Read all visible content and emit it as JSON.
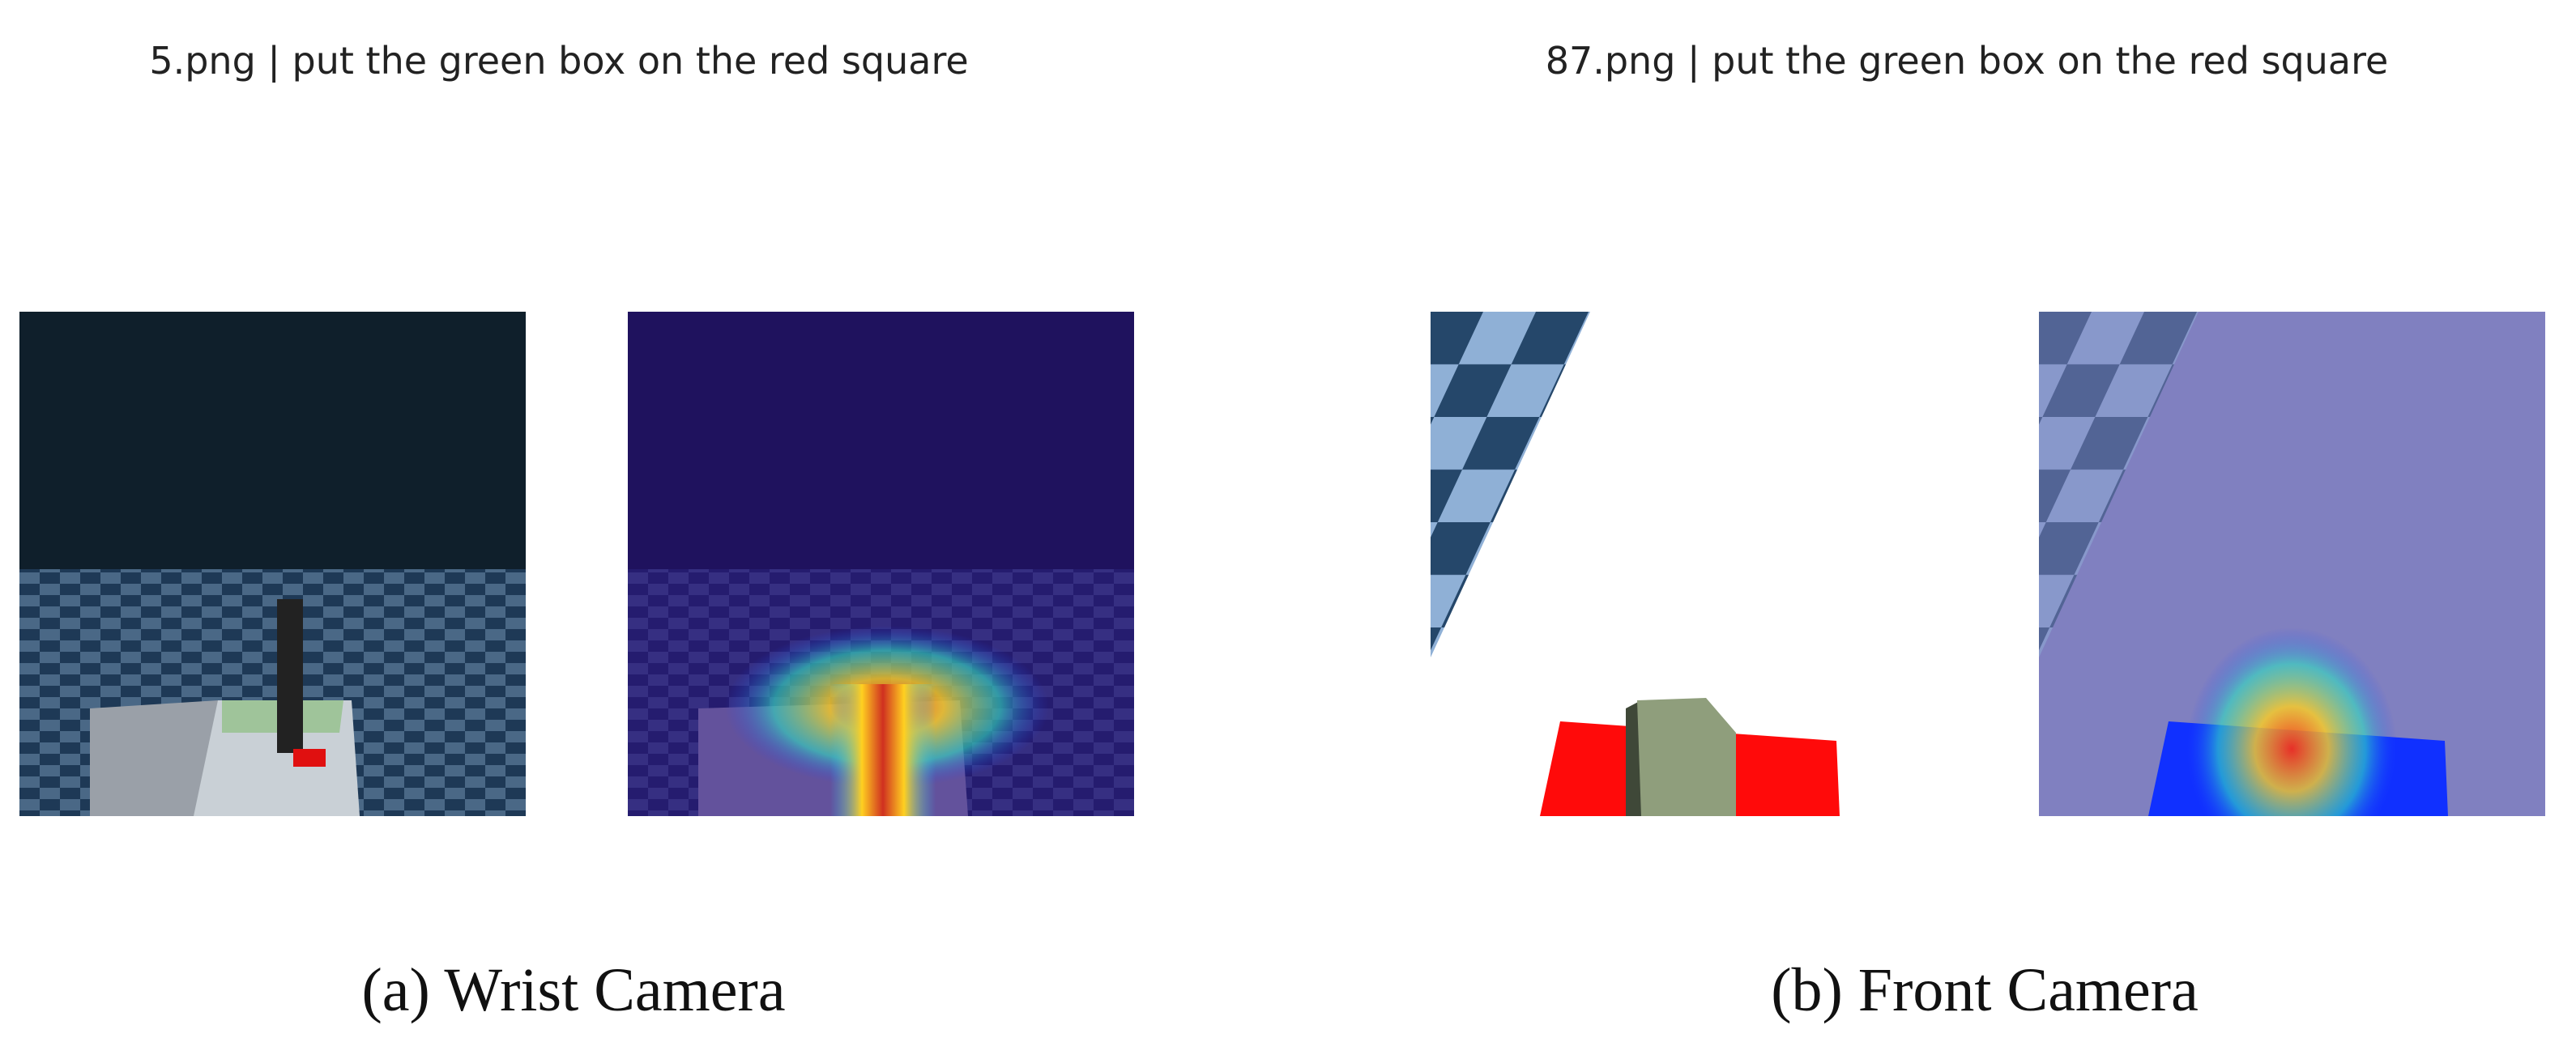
{
  "panels": [
    {
      "title": "5.png | put the green box on the red square",
      "caption": "(a) Wrist Camera"
    },
    {
      "title": "87.png | put the green box on the red square",
      "caption": "(b) Front Camera"
    }
  ]
}
